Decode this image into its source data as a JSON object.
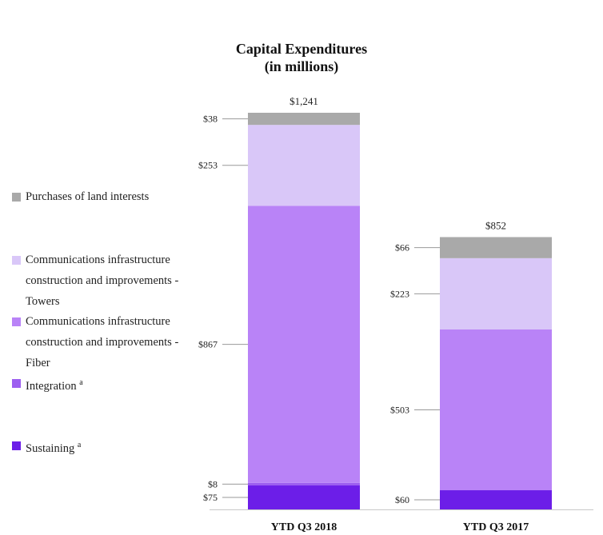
{
  "chart_data": {
    "type": "bar",
    "stacked": true,
    "title": "Capital Expenditures",
    "subtitle": "(in millions)",
    "categories": [
      "YTD Q3 2018",
      "YTD Q3 2017"
    ],
    "totals": [
      "$1,241",
      "$852"
    ],
    "series": [
      {
        "name": "Sustaining",
        "superscript": "a",
        "color": "#6c1ee8",
        "values": [
          75,
          60
        ],
        "labels": [
          "$75",
          "$60"
        ]
      },
      {
        "name": "Integration",
        "superscript": "a",
        "color": "#9d5ff0",
        "values": [
          8,
          0
        ],
        "labels": [
          "$8",
          ""
        ]
      },
      {
        "name": "Communications infrastructure construction and improvements - Fiber",
        "superscript": "",
        "color": "#b983f7",
        "values": [
          867,
          503
        ],
        "labels": [
          "$867",
          "$503"
        ]
      },
      {
        "name": "Communications infrastructure construction and improvements - Towers",
        "superscript": "",
        "color": "#d9c7f8",
        "values": [
          253,
          223
        ],
        "labels": [
          "$253",
          "$223"
        ]
      },
      {
        "name": "Purchases of land interests",
        "superscript": "",
        "color": "#a9a9a9",
        "values": [
          38,
          66
        ],
        "labels": [
          "$38",
          "$66"
        ]
      }
    ],
    "legend": {
      "position": "left"
    },
    "ylim": [
      0,
      1241
    ],
    "grid": false
  }
}
